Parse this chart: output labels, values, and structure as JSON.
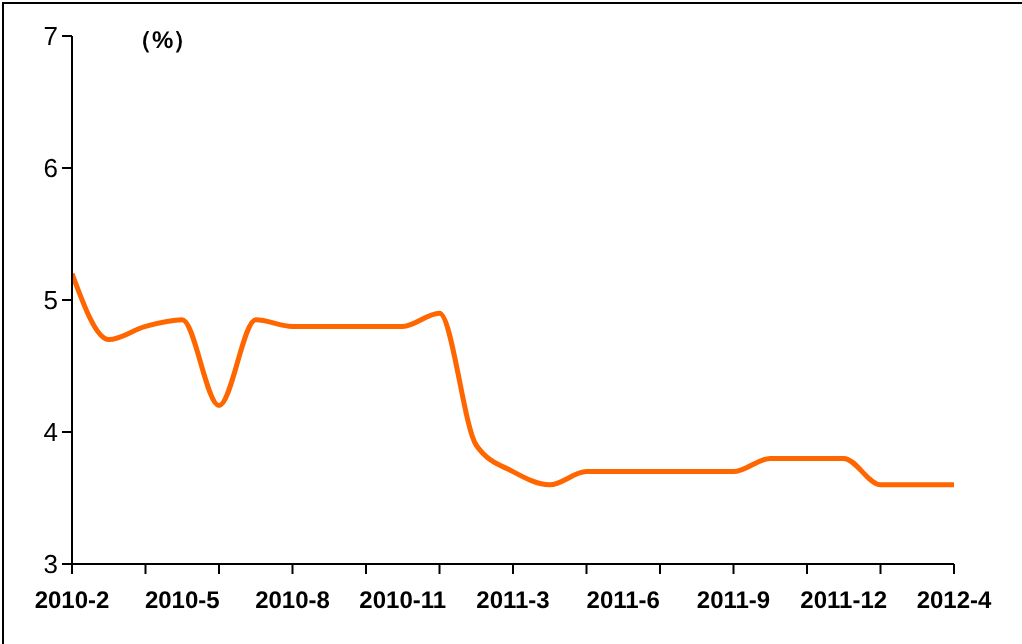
{
  "chart_data": {
    "type": "line",
    "ylabel": "（%）",
    "categories": [
      "2010-2",
      null,
      null,
      "2010-5",
      null,
      null,
      "2010-8",
      null,
      null,
      "2010-11",
      null,
      null,
      "2011-3",
      null,
      null,
      "2011-6",
      null,
      null,
      "2011-9",
      null,
      null,
      "2011-12",
      null,
      null,
      "2012-4"
    ],
    "series": [
      {
        "color": "#ff6600",
        "values": [
          5.2,
          4.7,
          4.8,
          4.85,
          4.2,
          4.85,
          4.8,
          4.8,
          4.8,
          4.8,
          4.9,
          3.9,
          3.7,
          3.6,
          3.7,
          3.7,
          3.7,
          3.7,
          3.7,
          3.8,
          3.8,
          3.8,
          3.6,
          3.6,
          3.6
        ]
      }
    ],
    "ylim": [
      3,
      7
    ],
    "yticks": [
      3,
      4,
      5,
      6,
      7
    ],
    "grid": false,
    "marker": "none",
    "line_style": "solid"
  }
}
